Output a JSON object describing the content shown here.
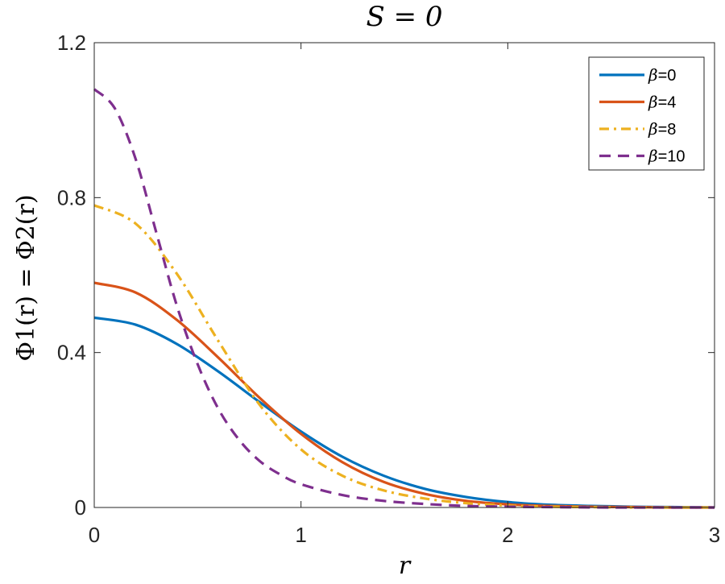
{
  "chart_data": {
    "type": "line",
    "title": "S = 0",
    "xlabel": "r",
    "ylabel": "Φ1(r) = Φ2(r)",
    "xlim": [
      0,
      3
    ],
    "ylim": [
      0,
      1.2
    ],
    "xticks": [
      0,
      1,
      2,
      3
    ],
    "xtick_labels": [
      "0",
      "1",
      "2",
      "3"
    ],
    "yticks": [
      0,
      0.4,
      0.8,
      1.2
    ],
    "ytick_labels": [
      "0",
      "0.4",
      "0.8",
      "1.2"
    ],
    "grid": false,
    "legend_position": "top-right",
    "series": [
      {
        "name": "β=0",
        "beta": "β",
        "suffix": "=0",
        "color": "#0072BD",
        "style": "solid",
        "x": [
          0,
          0.2,
          0.4,
          0.6,
          0.8,
          1.0,
          1.2,
          1.4,
          1.6,
          1.8,
          2.0,
          2.2,
          2.4,
          2.6,
          2.8,
          3.0
        ],
        "y": [
          0.49,
          0.472,
          0.422,
          0.351,
          0.272,
          0.196,
          0.131,
          0.082,
          0.048,
          0.027,
          0.014,
          0.007,
          0.004,
          0.002,
          0.001,
          0.0
        ]
      },
      {
        "name": "β=4",
        "beta": "β",
        "suffix": "=4",
        "color": "#D95319",
        "style": "solid",
        "x": [
          0,
          0.2,
          0.4,
          0.6,
          0.8,
          1.0,
          1.2,
          1.4,
          1.6,
          1.8,
          2.0,
          2.2,
          2.4,
          2.6,
          2.8,
          3.0
        ],
        "y": [
          0.58,
          0.555,
          0.484,
          0.387,
          0.283,
          0.19,
          0.117,
          0.066,
          0.035,
          0.017,
          0.008,
          0.004,
          0.002,
          0.001,
          0.0,
          0.0
        ]
      },
      {
        "name": "β=8",
        "beta": "β",
        "suffix": "=8",
        "color": "#EDB120",
        "style": "dashdot",
        "x": [
          0,
          0.2,
          0.4,
          0.6,
          0.8,
          1.0,
          1.2,
          1.4,
          1.6,
          1.8,
          2.0,
          2.2,
          2.4,
          2.6,
          2.8,
          3.0
        ],
        "y": [
          0.78,
          0.733,
          0.603,
          0.43,
          0.265,
          0.15,
          0.082,
          0.044,
          0.023,
          0.011,
          0.005,
          0.002,
          0.001,
          0.0,
          0.0,
          0.0
        ]
      },
      {
        "name": "β=10",
        "beta": "β",
        "suffix": "=10",
        "color": "#7E2F8E",
        "style": "dashed",
        "x": [
          0,
          0.1,
          0.2,
          0.3,
          0.4,
          0.5,
          0.6,
          0.7,
          0.8,
          0.9,
          1.0,
          1.2,
          1.4,
          1.6,
          1.8,
          2.0,
          2.5,
          3.0
        ],
        "y": [
          1.08,
          1.03,
          0.9,
          0.71,
          0.52,
          0.37,
          0.255,
          0.175,
          0.12,
          0.085,
          0.06,
          0.032,
          0.017,
          0.009,
          0.004,
          0.002,
          0.0,
          0.0
        ]
      }
    ]
  }
}
